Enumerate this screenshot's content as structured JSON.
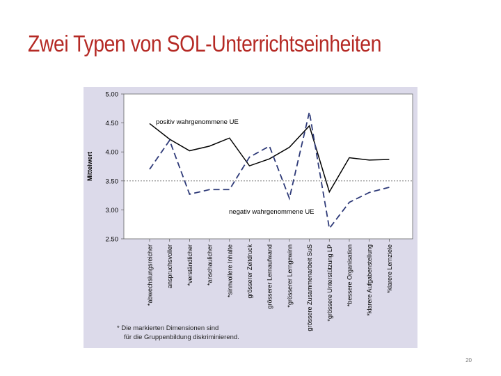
{
  "slide": {
    "title": "Zwei Typen von SOL-Unterrichtseinheiten",
    "page_number": "20",
    "footnote_line1": "*  Die markierten Dimensionen sind",
    "footnote_line2": "für die Gruppenbildung diskriminierend."
  },
  "chart_data": {
    "type": "line",
    "ylabel": "Mittelwert",
    "ylim": [
      2.5,
      5.0
    ],
    "yticks": [
      "2.50",
      "3.00",
      "3.50",
      "4.00",
      "4.50",
      "5.00"
    ],
    "reference_line": 3.5,
    "categories": [
      "*abwechslungsreicher",
      "anspruchsvoller",
      "*verständlicher",
      "*anschaulicher",
      "*sinnvollere Inhalte",
      "grösserer Zeitdruck",
      "grösserer Lernaufwand",
      "*grösserer Lerngewinn",
      "grössere Zusammenarbeit SuS",
      "*grössere Unterstützung LP",
      "*bessere Organisation",
      "*klarere Aufgabenstellung",
      "*klarere Lernziele"
    ],
    "series": [
      {
        "name": "positiv wahrgenommene UE",
        "style": "solid",
        "color": "#000000",
        "values": [
          4.49,
          4.22,
          4.02,
          4.1,
          4.24,
          3.76,
          3.88,
          4.08,
          4.45,
          3.31,
          3.9,
          3.86,
          3.87
        ]
      },
      {
        "name": "negativ wahrgenommene UE",
        "style": "dashed",
        "color": "#2e3a78",
        "values": [
          3.7,
          4.2,
          3.27,
          3.35,
          3.35,
          3.91,
          4.1,
          3.2,
          4.69,
          2.68,
          3.13,
          3.3,
          3.39
        ]
      }
    ]
  }
}
